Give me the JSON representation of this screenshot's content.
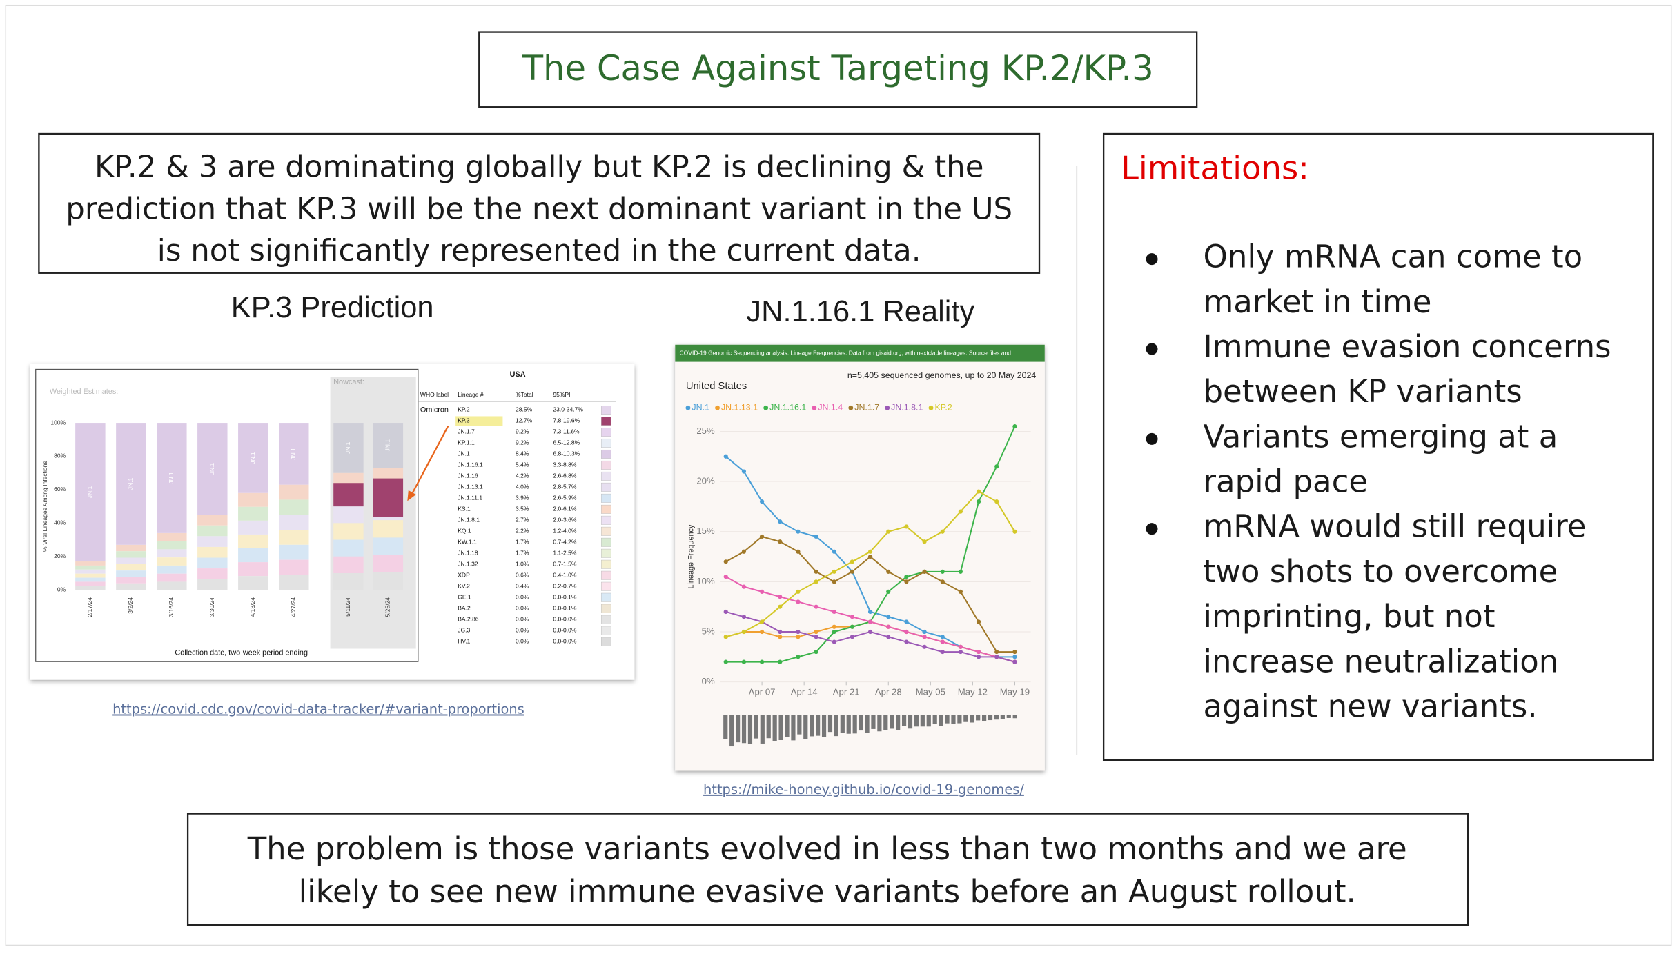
{
  "title": "The Case Against Targeting KP.2/KP.3",
  "summary": {
    "lines": [
      "KP.2 & 3 are dominating globally but KP.2 is declining & the",
      "prediction that KP.3 will be the next dominant variant in the US",
      "is not significantly represented in the current data."
    ]
  },
  "limitations": {
    "heading": "Limitations:",
    "items": [
      {
        "lines": [
          "Only mRNA can come to",
          "market in time"
        ]
      },
      {
        "lines": [
          "Immune evasion concerns",
          "between KP variants"
        ]
      },
      {
        "lines": [
          "Variants emerging at a",
          "rapid pace"
        ]
      },
      {
        "lines": [
          "mRNA would still require",
          "two shots to overcome",
          "imprinting, but not",
          "increase neutralization",
          "against new variants."
        ]
      }
    ]
  },
  "prediction": {
    "heading": "KP.3 Prediction",
    "link": "https://covid.cdc.gov/covid-data-tracker/#variant-proportions",
    "chart": {
      "type": "bar",
      "title": "Weighted Estimates:",
      "nowcast": "Nowcast:",
      "ylabel": "% Viral Lineages Among Infections",
      "xlabel": "Collection date, two-week period ending",
      "categories": [
        "2/17/24",
        "3/2/24",
        "3/16/24",
        "3/30/24",
        "4/13/24",
        "4/27/24",
        "5/11/24",
        "5/25/24"
      ],
      "series": [
        {
          "name": "JN.1",
          "color": "#dccbe6",
          "values": [
            83,
            73,
            66,
            55,
            42,
            37,
            30,
            27
          ]
        }
      ],
      "ylim": [
        0,
        100
      ],
      "yticks": [
        {
          "value": 0,
          "label": "0%"
        },
        {
          "value": 20,
          "label": "20%"
        },
        {
          "value": 40,
          "label": "40%"
        },
        {
          "value": 60,
          "label": "60%"
        },
        {
          "value": 80,
          "label": "80%"
        },
        {
          "value": 100,
          "label": "100%"
        }
      ]
    },
    "table": {
      "region": "USA",
      "columns": [
        "WHO label",
        "Lineage #",
        "%Total",
        "95%PI"
      ],
      "group": "Omicron",
      "rows": [
        [
          "KP.2",
          "28.5%",
          "23.0-34.7%"
        ],
        [
          "KP.3",
          "12.7%",
          "7.8-19.6%"
        ],
        [
          "JN.1.7",
          "9.2%",
          "7.3-11.6%"
        ],
        [
          "KP.1.1",
          "9.2%",
          "6.5-12.8%"
        ],
        [
          "JN.1",
          "8.4%",
          "6.8-10.3%"
        ],
        [
          "JN.1.16.1",
          "5.4%",
          "3.3-8.8%"
        ],
        [
          "JN.1.16",
          "4.2%",
          "2.6-6.8%"
        ],
        [
          "JN.1.13.1",
          "4.0%",
          "2.8-5.7%"
        ],
        [
          "JN.1.11.1",
          "3.9%",
          "2.6-5.9%"
        ],
        [
          "KS.1",
          "3.5%",
          "2.0-6.1%"
        ],
        [
          "JN.1.8.1",
          "2.7%",
          "2.0-3.6%"
        ],
        [
          "KQ.1",
          "2.2%",
          "1.2-4.0%"
        ],
        [
          "KW.1.1",
          "1.7%",
          "0.7-4.2%"
        ],
        [
          "JN.1.18",
          "1.7%",
          "1.1-2.5%"
        ],
        [
          "JN.1.32",
          "1.0%",
          "0.7-1.5%"
        ],
        [
          "XDP",
          "0.6%",
          "0.4-1.0%"
        ],
        [
          "KV.2",
          "0.4%",
          "0.2-0.7%"
        ],
        [
          "GE.1",
          "0.0%",
          "0.0-0.1%"
        ],
        [
          "BA.2",
          "0.0%",
          "0.0-0.1%"
        ],
        [
          "BA.2.86",
          "0.0%",
          "0.0-0.0%"
        ],
        [
          "JG.3",
          "0.0%",
          "0.0-0.0%"
        ],
        [
          "HV.1",
          "0.0%",
          "0.0-0.0%"
        ]
      ]
    }
  },
  "reality": {
    "heading": "JN.1.16.1 Reality",
    "link": "https://mike-honey.github.io/covid-19-genomes/",
    "chart": {
      "type": "line",
      "banner": "COVID-19 Genomic Sequencing analysis. Lineage Frequencies. Data from gisaid.org, with nextclade lineages. Source files and",
      "subtitle": "United States",
      "note": "n=5,405 sequenced genomes, up to 20 May 2024",
      "ylabel": "Lineage Frequency",
      "x": [
        1,
        4,
        7,
        10,
        13,
        16,
        19,
        22,
        25,
        28,
        31,
        34,
        37,
        40,
        43,
        46,
        49
      ],
      "xlim": [
        0,
        51
      ],
      "xticks": [
        {
          "value": 7,
          "label": "Apr 07"
        },
        {
          "value": 14,
          "label": "Apr 14"
        },
        {
          "value": 21,
          "label": "Apr 21"
        },
        {
          "value": 28,
          "label": "Apr 28"
        },
        {
          "value": 35,
          "label": "May 05"
        },
        {
          "value": 42,
          "label": "May 12"
        },
        {
          "value": 49,
          "label": "May 19"
        }
      ],
      "ylim": [
        0,
        26
      ],
      "yticks": [
        {
          "value": 0,
          "label": "0%"
        },
        {
          "value": 5,
          "label": "5%"
        },
        {
          "value": 10,
          "label": "10%"
        },
        {
          "value": 15,
          "label": "15%"
        },
        {
          "value": 20,
          "label": "20%"
        },
        {
          "value": 25,
          "label": "25%"
        }
      ],
      "series": [
        {
          "name": "JN.1",
          "color": "#4a9fd8",
          "values": [
            22.5,
            21,
            18,
            16,
            15,
            14.5,
            13,
            11,
            7,
            6.5,
            6,
            5,
            4.5,
            3.5,
            3,
            2.5,
            2.5
          ]
        },
        {
          "name": "JN.1.13.1",
          "color": "#f0a030",
          "values": [
            4.5,
            5,
            5,
            4.5,
            4.5,
            5,
            5.5,
            5.5,
            6,
            5.5,
            5,
            4.5,
            4,
            3.5,
            3,
            2.5,
            2
          ]
        },
        {
          "name": "JN.1.16.1",
          "color": "#3cb44b",
          "values": [
            2,
            2,
            2,
            2,
            2.5,
            3,
            5,
            5.5,
            6,
            9,
            10.5,
            11,
            11,
            11,
            18,
            21.5,
            25.5
          ]
        },
        {
          "name": "JN.1.4",
          "color": "#e85fb0",
          "values": [
            10.5,
            9.5,
            9,
            8.5,
            8,
            7.5,
            7,
            6.5,
            6,
            5.5,
            5,
            4.5,
            4,
            3.5,
            3,
            2.5,
            2
          ]
        },
        {
          "name": "JN.1.7",
          "color": "#a07828",
          "values": [
            12,
            13,
            14.5,
            14,
            13,
            11,
            10,
            11,
            12.5,
            11,
            10,
            11,
            10,
            9,
            6,
            3,
            3
          ]
        },
        {
          "name": "JN.1.8.1",
          "color": "#9b59b6",
          "values": [
            7,
            6.5,
            6,
            5,
            5,
            4.5,
            4,
            4.5,
            5,
            4.5,
            4,
            3.5,
            3,
            3,
            2.5,
            2.5,
            2
          ]
        },
        {
          "name": "KP.2",
          "color": "#d4c828",
          "values": [
            4.5,
            5,
            6,
            7.5,
            9,
            10,
            11,
            12,
            13,
            15,
            15.5,
            14,
            15,
            17,
            19,
            18,
            15
          ]
        }
      ]
    }
  },
  "conclusion": {
    "lines": [
      "The problem is those variants evolved in less than two months and we are",
      "likely to see new immune evasive variants before an August rollout."
    ]
  }
}
